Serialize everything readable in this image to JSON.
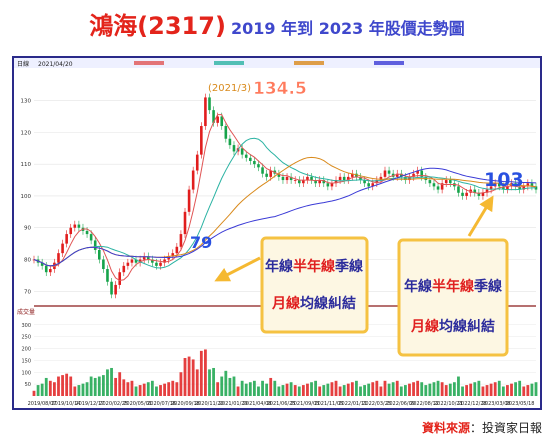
{
  "title": {
    "stock": "鴻海(2317)",
    "subtitle": "2019 年到 2023 年股價走勢圖"
  },
  "source": {
    "label": "資料來源",
    "separator": "：",
    "value": "投資家日報"
  },
  "colors": {
    "title_red": "#e3241b",
    "title_blue": "#3f48cc",
    "callout_bg": "#fdf7e3",
    "callout_border": "#f5c242",
    "arrow": "#f5b932",
    "ma_long": "#3b3bd6",
    "up": "#e11d1d",
    "down": "#16a34a"
  },
  "header": {
    "period": "日線",
    "date": "2021/04/20"
  },
  "volume_header": {
    "label": "成交量"
  },
  "annotations": {
    "peak": {
      "date": "(2021/3)",
      "price": "134.5"
    },
    "low_label": "79",
    "end_label": "103"
  },
  "callouts": [
    {
      "line1": [
        "年線",
        "半年線",
        "季線"
      ],
      "line2": [
        "月線",
        "均線糾結"
      ]
    },
    {
      "line1": [
        "年線",
        "半年線",
        "季線"
      ],
      "line2": [
        "月線",
        "均線糾結"
      ]
    }
  ],
  "chart_data": {
    "type": "line",
    "price_axis": {
      "ticks": [
        70,
        80,
        90,
        100,
        110,
        120,
        130
      ],
      "ylim": [
        66,
        139
      ]
    },
    "volume_axis": {
      "ticks": [
        50,
        100,
        150,
        200,
        250,
        300
      ],
      "ylim": [
        0,
        320
      ]
    },
    "x_tick_labels": [
      "2019/08/07",
      "2019/10/14",
      "2019/12/17",
      "2020/02/25",
      "2020/05/01",
      "2020/07/16",
      "2020/09/18",
      "2020/11/20",
      "2021/01/29",
      "2021/04/08",
      "2021/06/25",
      "2021/09/03",
      "2021/11/05",
      "2022/01/11",
      "2022/03/23",
      "2022/06/09",
      "2022/08/12",
      "2022/10/21",
      "2022/12/28",
      "2023/03/08",
      "2023/05/18"
    ],
    "price_series": {
      "x": [
        0,
        4,
        8,
        12,
        16,
        20,
        24,
        28,
        32,
        36,
        40,
        44,
        48,
        52,
        56,
        60,
        64,
        68,
        72,
        76,
        80,
        84,
        88,
        92,
        96,
        100,
        104,
        108,
        112,
        116,
        120,
        124,
        128,
        132,
        136,
        140,
        144,
        148,
        152,
        156,
        160,
        164,
        168,
        172,
        176,
        180,
        184,
        188,
        192,
        196,
        200,
        204,
        208,
        212,
        216,
        220,
        224,
        228,
        232,
        236,
        240,
        244,
        248,
        252,
        256,
        260,
        264,
        268,
        272,
        276,
        280,
        284,
        288,
        292,
        296,
        300,
        304,
        308,
        312,
        316,
        320,
        324,
        328,
        332,
        336,
        340,
        344,
        348,
        352,
        356,
        360,
        364,
        368,
        372,
        376,
        380,
        384,
        388,
        392,
        396,
        400,
        404,
        408,
        412,
        416,
        420,
        424,
        428,
        432,
        436,
        440,
        444,
        448,
        452,
        456,
        460,
        464,
        468,
        472,
        476,
        480,
        484,
        488,
        492
      ],
      "close": [
        80,
        79,
        78,
        76,
        77,
        79,
        82,
        85,
        88,
        90,
        91,
        90,
        89,
        88,
        86,
        83,
        80,
        77,
        73,
        69,
        72,
        76,
        78,
        79,
        80,
        79,
        80,
        81,
        80,
        79,
        78,
        79,
        80,
        81,
        82,
        84,
        88,
        95,
        102,
        108,
        113,
        122,
        131,
        127,
        123,
        125,
        122,
        118,
        116,
        114,
        115,
        113,
        112,
        111,
        110,
        109,
        107,
        106,
        108,
        107,
        106,
        105,
        106,
        105,
        105,
        104,
        105,
        106,
        105,
        104,
        105,
        104,
        103,
        104,
        105,
        106,
        105,
        106,
        107,
        106,
        105,
        104,
        103,
        104,
        105,
        106,
        108,
        107,
        106,
        107,
        106,
        105,
        106,
        107,
        108,
        106,
        105,
        104,
        103,
        102,
        104,
        105,
        104,
        103,
        101,
        100,
        101,
        102,
        101,
        100,
        101,
        102,
        103,
        104,
        103,
        102,
        103,
        104,
        103,
        102,
        103,
        104,
        103,
        102
      ]
    },
    "moving_averages": [
      {
        "name": "",
        "period": 20,
        "color": "#e05555"
      },
      {
        "name": "",
        "period": 60,
        "color": "#2bb3a3"
      },
      {
        "name": "",
        "period": 120,
        "color": "#d98a1c"
      },
      {
        "name": "",
        "period": 240,
        "color": "#3b3bd6"
      }
    ],
    "annotated_prices": {
      "peak": 134.5,
      "low": 79,
      "end": 103
    }
  }
}
